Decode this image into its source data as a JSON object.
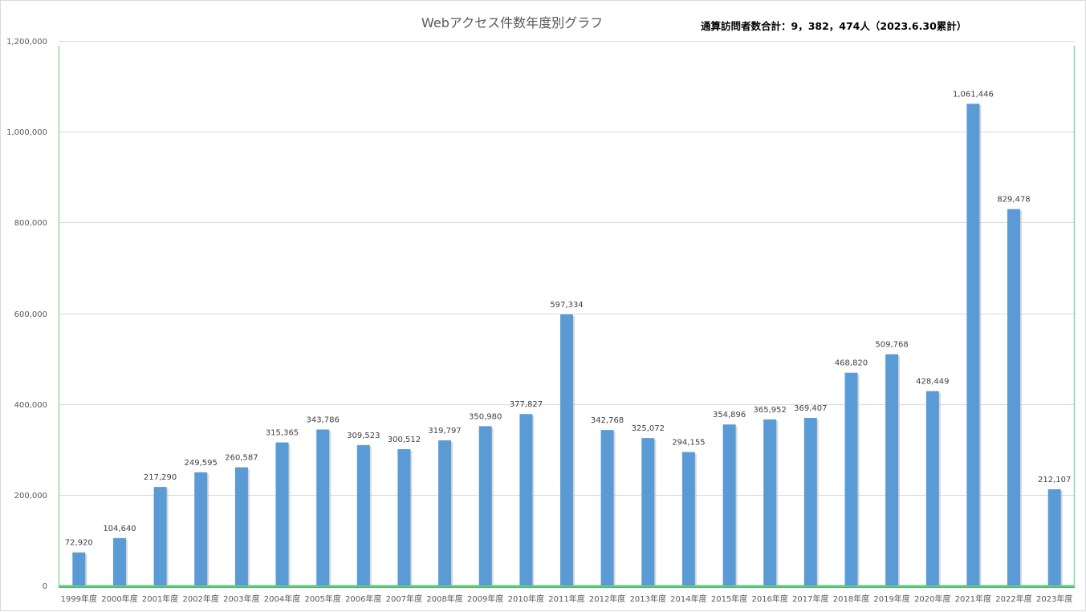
{
  "chart_data": {
    "type": "bar",
    "title": "Webアクセス件数年度別グラフ",
    "note": "通算訪問者数合計：9，382，474人（2023.6.30累計）",
    "categories": [
      "1999年度",
      "2000年度",
      "2001年度",
      "2002年度",
      "2003年度",
      "2004年度",
      "2005年度",
      "2006年度",
      "2007年度",
      "2008年度",
      "2009年度",
      "2010年度",
      "2011年度",
      "2012年度",
      "2013年度",
      "2014年度",
      "2015年度",
      "2016年度",
      "2017年度",
      "2018年度",
      "2019年度",
      "2020年度",
      "2021年度",
      "2022年度",
      "2023年度"
    ],
    "values": [
      72920,
      104640,
      217290,
      249595,
      260587,
      315365,
      343786,
      309523,
      300512,
      319797,
      350980,
      377827,
      597334,
      342768,
      325072,
      294155,
      354896,
      365952,
      369407,
      468820,
      509768,
      428449,
      1061446,
      829478,
      212107
    ],
    "value_labels": [
      "72,920",
      "104,640",
      "217,290",
      "249,595",
      "260,587",
      "315,365",
      "343,786",
      "309,523",
      "300,512",
      "319,797",
      "350,980",
      "377,827",
      "597,334",
      "342,768",
      "325,072",
      "294,155",
      "354,896",
      "365,952",
      "369,407",
      "468,820",
      "509,768",
      "428,449",
      "1,061,446",
      "829,478",
      "212,107"
    ],
    "yticks": [
      0,
      200000,
      400000,
      600000,
      800000,
      1000000,
      1200000
    ],
    "ytick_labels": [
      "0",
      "200,000",
      "400,000",
      "600,000",
      "800,000",
      "1,000,000",
      "1,200,000"
    ],
    "ylim": [
      0,
      1200000
    ],
    "xlabel": "",
    "ylabel": "",
    "grid": true,
    "legend": "none",
    "colors": {
      "bar": "#5b9bd5",
      "bar_shadow": "#b7b7b7",
      "grid": "#d9d9d9",
      "plot_border": "#92d6a8",
      "baseline": "#4cc46f"
    }
  }
}
